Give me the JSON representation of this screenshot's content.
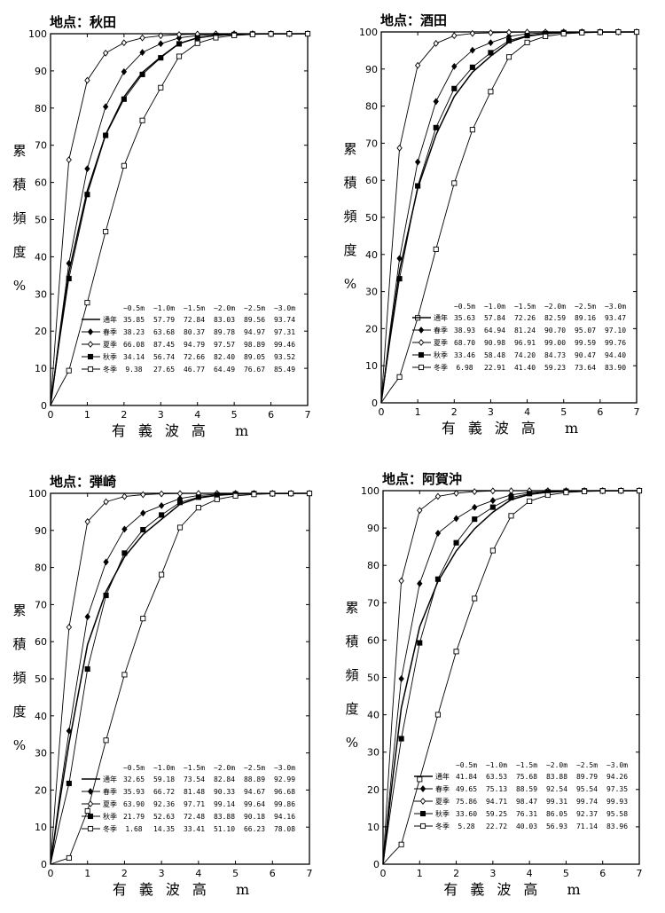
{
  "chart_data": [
    {
      "type": "line",
      "title": "地点：秋田",
      "xlabel": "有義波高 m",
      "ylabel": [
        "累",
        "積",
        "頻",
        "度",
        "%"
      ],
      "xlim": [
        0,
        7
      ],
      "ylim": [
        0,
        100
      ],
      "xticks": [
        "0",
        "1",
        "2",
        "3",
        "4",
        "5",
        "6",
        "7"
      ],
      "yticks": [
        "0",
        "10",
        "20",
        "30",
        "40",
        "50",
        "60",
        "70",
        "80",
        "90",
        "100"
      ],
      "table_headers": [
        "~0.5m",
        "~1.0m",
        "~1.5m",
        "~2.0m",
        "~2.5m",
        "~3.0m"
      ],
      "series": [
        {
          "name": "通年",
          "marker": "none",
          "values": [
            35.85,
            57.79,
            72.84,
            83.03,
            89.56,
            93.74
          ]
        },
        {
          "name": "春季",
          "marker": "diamond",
          "values": [
            38.23,
            63.68,
            80.37,
            89.78,
            94.97,
            97.31
          ]
        },
        {
          "name": "夏季",
          "marker": "diamond-open",
          "values": [
            66.08,
            87.45,
            94.79,
            97.57,
            98.89,
            99.46
          ]
        },
        {
          "name": "秋季",
          "marker": "square",
          "values": [
            34.14,
            56.74,
            72.66,
            82.4,
            89.05,
            93.52
          ]
        },
        {
          "name": "冬季",
          "marker": "square-open",
          "values": [
            9.38,
            27.65,
            46.77,
            64.49,
            76.67,
            85.49
          ]
        }
      ]
    },
    {
      "type": "line",
      "title": "地点：酒田",
      "xlabel": "有義波高 m",
      "ylabel": [
        "累",
        "積",
        "頻",
        "度",
        "%"
      ],
      "xlim": [
        0,
        7
      ],
      "ylim": [
        0,
        100
      ],
      "xticks": [
        "0",
        "1",
        "2",
        "3",
        "4",
        "5",
        "6",
        "7"
      ],
      "yticks": [
        "0",
        "10",
        "20",
        "30",
        "40",
        "50",
        "60",
        "70",
        "80",
        "90",
        "100"
      ],
      "table_headers": [
        "~0.5m",
        "~1.0m",
        "~1.5m",
        "~2.0m",
        "~2.5m",
        "~3.0m"
      ],
      "series": [
        {
          "name": "通年",
          "marker": "none",
          "values": [
            35.63,
            57.84,
            72.26,
            82.59,
            89.16,
            93.47
          ]
        },
        {
          "name": "春季",
          "marker": "diamond",
          "values": [
            38.93,
            64.94,
            81.24,
            90.7,
            95.07,
            97.1
          ]
        },
        {
          "name": "夏季",
          "marker": "diamond-open",
          "values": [
            68.7,
            90.98,
            96.91,
            99.0,
            99.59,
            99.76
          ]
        },
        {
          "name": "秋季",
          "marker": "square",
          "values": [
            33.46,
            58.48,
            74.2,
            84.73,
            90.47,
            94.4
          ]
        },
        {
          "name": "冬季",
          "marker": "square-open",
          "values": [
            6.98,
            22.91,
            41.4,
            59.23,
            73.64,
            83.9
          ]
        }
      ]
    },
    {
      "type": "line",
      "title": "地点：弾崎",
      "xlabel": "有義波高 m",
      "ylabel": [
        "累",
        "積",
        "頻",
        "度",
        "%"
      ],
      "xlim": [
        0,
        7
      ],
      "ylim": [
        0,
        100
      ],
      "xticks": [
        "0",
        "1",
        "2",
        "3",
        "4",
        "5",
        "6",
        "7"
      ],
      "yticks": [
        "0",
        "10",
        "20",
        "30",
        "40",
        "50",
        "60",
        "70",
        "80",
        "90",
        "100"
      ],
      "table_headers": [
        "~0.5m",
        "~1.0m",
        "~1.5m",
        "~2.0m",
        "~2.5m",
        "~3.0m"
      ],
      "series": [
        {
          "name": "通年",
          "marker": "none",
          "values": [
            32.65,
            59.18,
            73.54,
            82.84,
            88.89,
            92.99
          ]
        },
        {
          "name": "春季",
          "marker": "diamond",
          "values": [
            35.93,
            66.72,
            81.48,
            90.33,
            94.67,
            96.68
          ]
        },
        {
          "name": "夏季",
          "marker": "diamond-open",
          "values": [
            63.9,
            92.36,
            97.71,
            99.14,
            99.64,
            99.86
          ]
        },
        {
          "name": "秋季",
          "marker": "square",
          "values": [
            21.79,
            52.63,
            72.48,
            83.88,
            90.18,
            94.16
          ]
        },
        {
          "name": "冬季",
          "marker": "square-open",
          "values": [
            1.68,
            14.35,
            33.41,
            51.1,
            66.23,
            78.08
          ]
        }
      ]
    },
    {
      "type": "line",
      "title": "地点：阿賀沖",
      "xlabel": "有義波高 m",
      "ylabel": [
        "累",
        "積",
        "頻",
        "度",
        "%"
      ],
      "xlim": [
        0,
        7
      ],
      "ylim": [
        0,
        100
      ],
      "xticks": [
        "0",
        "1",
        "2",
        "3",
        "4",
        "5",
        "6",
        "7"
      ],
      "yticks": [
        "0",
        "10",
        "20",
        "30",
        "40",
        "50",
        "60",
        "70",
        "80",
        "90",
        "100"
      ],
      "table_headers": [
        "~0.5m",
        "~1.0m",
        "~1.5m",
        "~2.0m",
        "~2.5m",
        "~3.0m"
      ],
      "series": [
        {
          "name": "通年",
          "marker": "none",
          "values": [
            41.84,
            63.53,
            75.68,
            83.88,
            89.79,
            94.26
          ]
        },
        {
          "name": "春季",
          "marker": "diamond",
          "values": [
            49.65,
            75.13,
            88.59,
            92.54,
            95.54,
            97.35
          ]
        },
        {
          "name": "夏季",
          "marker": "diamond-open",
          "values": [
            75.86,
            94.71,
            98.47,
            99.31,
            99.74,
            99.93
          ]
        },
        {
          "name": "秋季",
          "marker": "square",
          "values": [
            33.6,
            59.25,
            76.31,
            86.05,
            92.37,
            95.58
          ]
        },
        {
          "name": "冬季",
          "marker": "square-open",
          "values": [
            5.28,
            22.72,
            40.03,
            56.93,
            71.14,
            83.96
          ]
        }
      ]
    }
  ]
}
